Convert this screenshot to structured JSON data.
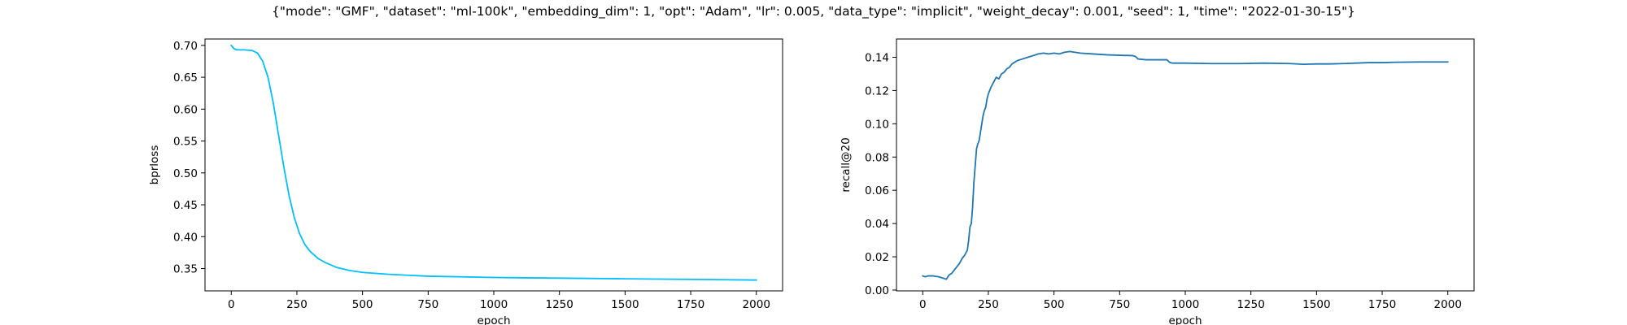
{
  "suptitle": "{\"mode\": \"GMF\", \"dataset\": \"ml-100k\", \"embedding_dim\": 1, \"opt\": \"Adam\", \"lr\": 0.005, \"data_type\": \"implicit\", \"weight_decay\": 0.001, \"seed\": 1, \"time\": \"2022-01-30-15\"}",
  "chart_data": [
    {
      "type": "line",
      "xlabel": "epoch",
      "ylabel": "bprloss",
      "xlim": [
        -100,
        2100
      ],
      "ylim": [
        0.315,
        0.71
      ],
      "xticks": [
        0,
        250,
        500,
        750,
        1000,
        1250,
        1500,
        1750,
        2000
      ],
      "yticks": [
        0.35,
        0.4,
        0.45,
        0.5,
        0.55,
        0.6,
        0.65,
        0.7
      ],
      "grid": false,
      "color": "#00bfff",
      "series": [
        {
          "x": [
            0,
            10,
            20,
            50,
            80,
            100,
            120,
            140,
            160,
            180,
            200,
            220,
            240,
            260,
            280,
            300,
            330,
            360,
            400,
            450,
            500,
            600,
            750,
            1000,
            1250,
            1500,
            1750,
            2000
          ],
          "y": [
            0.7,
            0.695,
            0.693,
            0.693,
            0.692,
            0.688,
            0.675,
            0.65,
            0.61,
            0.56,
            0.51,
            0.465,
            0.43,
            0.405,
            0.388,
            0.377,
            0.366,
            0.359,
            0.352,
            0.347,
            0.344,
            0.341,
            0.338,
            0.336,
            0.335,
            0.334,
            0.333,
            0.332
          ]
        }
      ]
    },
    {
      "type": "line",
      "xlabel": "epoch",
      "ylabel": "recall@20",
      "xlim": [
        -100,
        2100
      ],
      "ylim": [
        -0.0005,
        0.151
      ],
      "xticks": [
        0,
        250,
        500,
        750,
        1000,
        1250,
        1500,
        1750,
        2000
      ],
      "yticks": [
        0.0,
        0.02,
        0.04,
        0.06,
        0.08,
        0.1,
        0.12,
        0.14
      ],
      "grid": false,
      "color": "#1f77b4",
      "series": [
        {
          "x": [
            0,
            10,
            20,
            40,
            60,
            80,
            90,
            100,
            110,
            120,
            130,
            140,
            150,
            160,
            170,
            175,
            180,
            185,
            190,
            195,
            200,
            205,
            210,
            215,
            220,
            225,
            230,
            235,
            240,
            245,
            250,
            260,
            270,
            280,
            290,
            300,
            310,
            320,
            330,
            340,
            360,
            380,
            400,
            420,
            440,
            460,
            480,
            500,
            520,
            540,
            560,
            580,
            600,
            650,
            700,
            750,
            800,
            810,
            820,
            850,
            900,
            930,
            940,
            950,
            1000,
            1100,
            1200,
            1300,
            1400,
            1450,
            1500,
            1550,
            1600,
            1650,
            1700,
            1750,
            1800,
            1900,
            2000
          ],
          "y": [
            0.0085,
            0.008,
            0.0085,
            0.0085,
            0.008,
            0.007,
            0.0065,
            0.009,
            0.01,
            0.012,
            0.014,
            0.016,
            0.019,
            0.021,
            0.024,
            0.03,
            0.038,
            0.04,
            0.05,
            0.065,
            0.075,
            0.085,
            0.088,
            0.09,
            0.095,
            0.1,
            0.105,
            0.108,
            0.11,
            0.115,
            0.118,
            0.122,
            0.125,
            0.128,
            0.127,
            0.13,
            0.131,
            0.133,
            0.134,
            0.136,
            0.138,
            0.139,
            0.14,
            0.141,
            0.142,
            0.1425,
            0.142,
            0.1425,
            0.142,
            0.143,
            0.1435,
            0.143,
            0.1425,
            0.142,
            0.1415,
            0.1412,
            0.141,
            0.1405,
            0.139,
            0.1385,
            0.1385,
            0.1385,
            0.137,
            0.1365,
            0.1365,
            0.1362,
            0.1362,
            0.1365,
            0.1362,
            0.1358,
            0.136,
            0.136,
            0.1362,
            0.1365,
            0.1368,
            0.1368,
            0.137,
            0.1372,
            0.1372
          ]
        }
      ]
    }
  ]
}
